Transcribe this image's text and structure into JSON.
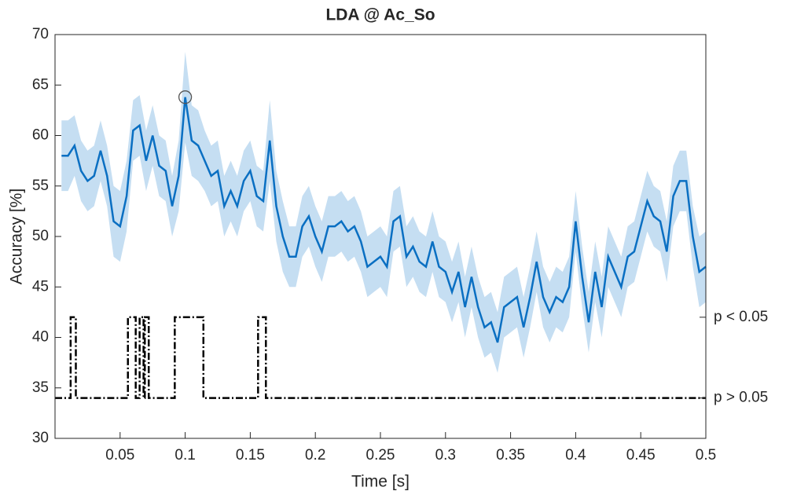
{
  "chart_data": {
    "type": "line",
    "title": "LDA @ Ac_So",
    "x_label": "Time [s]",
    "y_label": "Accuracy [%]",
    "x": [
      0.005,
      0.01,
      0.015,
      0.02,
      0.025,
      0.03,
      0.035,
      0.04,
      0.045,
      0.05,
      0.055,
      0.06,
      0.065,
      0.07,
      0.075,
      0.08,
      0.085,
      0.09,
      0.095,
      0.1,
      0.105,
      0.11,
      0.115,
      0.12,
      0.125,
      0.13,
      0.135,
      0.14,
      0.145,
      0.15,
      0.155,
      0.16,
      0.165,
      0.17,
      0.175,
      0.18,
      0.185,
      0.19,
      0.195,
      0.2,
      0.205,
      0.21,
      0.215,
      0.22,
      0.225,
      0.23,
      0.235,
      0.24,
      0.245,
      0.25,
      0.255,
      0.26,
      0.265,
      0.27,
      0.275,
      0.28,
      0.285,
      0.29,
      0.295,
      0.3,
      0.305,
      0.31,
      0.315,
      0.32,
      0.325,
      0.33,
      0.335,
      0.34,
      0.345,
      0.35,
      0.355,
      0.36,
      0.365,
      0.37,
      0.375,
      0.38,
      0.385,
      0.39,
      0.395,
      0.4,
      0.405,
      0.41,
      0.415,
      0.42,
      0.425,
      0.43,
      0.435,
      0.44,
      0.445,
      0.45,
      0.455,
      0.46,
      0.465,
      0.47,
      0.475,
      0.48,
      0.485,
      0.49,
      0.495,
      0.5
    ],
    "series": [
      {
        "color": "#0a6fc2",
        "band_color": "#c5def2",
        "values": [
          58,
          58,
          59,
          56.5,
          55.5,
          56,
          58.5,
          56,
          51.5,
          51,
          54,
          60.5,
          61,
          57.5,
          60,
          57,
          56.5,
          53,
          56,
          63.8,
          59.5,
          59,
          57.5,
          56,
          56.5,
          53,
          54.5,
          53,
          55.5,
          56.5,
          54,
          53.5,
          59.5,
          53,
          50,
          48,
          48,
          51,
          52,
          50,
          48.5,
          51,
          51,
          51.5,
          50.5,
          51,
          49.5,
          47,
          47.5,
          48,
          47,
          51.5,
          52,
          48,
          49,
          47.5,
          47,
          49.5,
          47,
          46.5,
          44.5,
          46.5,
          43,
          46,
          43,
          41,
          41.5,
          39.5,
          43,
          43.5,
          44,
          41,
          44,
          47.5,
          44,
          42.5,
          44,
          43.5,
          45,
          51.5,
          46,
          41.5,
          46.5,
          43,
          48,
          46.5,
          45,
          48,
          48.5,
          51,
          53.5,
          52,
          51.5,
          48.5,
          54,
          55.5,
          55.5,
          50,
          46.5,
          47
        ],
        "error": [
          3.5,
          3.5,
          3,
          3,
          3,
          3,
          3,
          3,
          3.5,
          3.5,
          3.5,
          3,
          3,
          3,
          3,
          3,
          3,
          3,
          3.5,
          4.5,
          3.5,
          3.5,
          3,
          3,
          3,
          3,
          3,
          3,
          3,
          3,
          3,
          3,
          4,
          3.5,
          3.5,
          3,
          3,
          3,
          3,
          3,
          3,
          3,
          3,
          3,
          3,
          3,
          3,
          3,
          3,
          3,
          3,
          3,
          3,
          3,
          3,
          3,
          3,
          3,
          3,
          3,
          3,
          3,
          3,
          3,
          3,
          3,
          3,
          3,
          3,
          3,
          3,
          3,
          3,
          3,
          3,
          3,
          3,
          3,
          3,
          3,
          3,
          3,
          3,
          3,
          3,
          3,
          3,
          3,
          3,
          3,
          3,
          3,
          3,
          3,
          3,
          3,
          3,
          3,
          3.5,
          3.5
        ]
      }
    ],
    "peak": {
      "x": 0.1,
      "value": 63.8
    },
    "significance": {
      "x": [
        0,
        0.012,
        0.012,
        0.016,
        0.016,
        0.056,
        0.056,
        0.062,
        0.062,
        0.065,
        0.065,
        0.068,
        0.068,
        0.069,
        0.069,
        0.072,
        0.072,
        0.092,
        0.092,
        0.114,
        0.114,
        0.156,
        0.156,
        0.162,
        0.162,
        0.5
      ],
      "values": [
        34,
        34,
        42,
        42,
        34,
        34,
        42,
        42,
        34,
        34,
        42,
        42,
        34,
        34,
        42,
        42,
        34,
        34,
        42,
        42,
        34,
        34,
        42,
        42,
        34,
        34
      ]
    },
    "xlim": [
      0,
      0.5
    ],
    "xticks": [
      0.05,
      0.1,
      0.15,
      0.2,
      0.25,
      0.3,
      0.35,
      0.4,
      0.45,
      0.5
    ],
    "ylim": [
      30,
      70
    ],
    "yticks": [
      30,
      35,
      40,
      45,
      50,
      55,
      60,
      65,
      70
    ],
    "y2lim": [
      30,
      70
    ],
    "y2ticks": [
      {
        "value": 42,
        "label": "p < 0.05"
      },
      {
        "value": 34,
        "label": "p > 0.05"
      }
    ]
  }
}
